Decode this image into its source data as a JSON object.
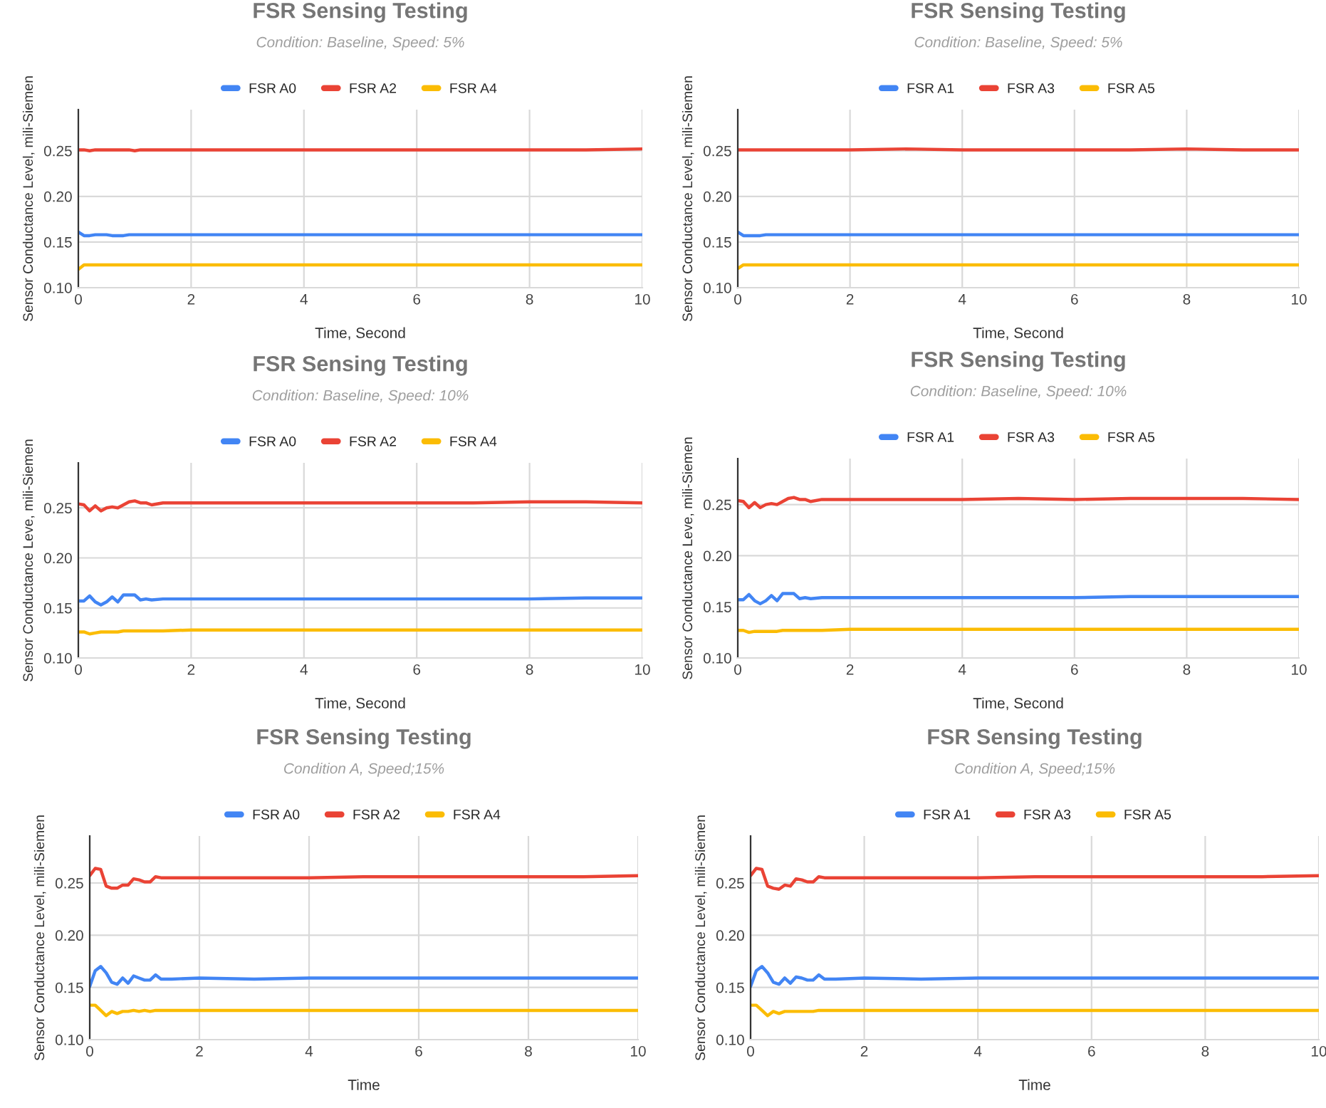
{
  "chart_data": [
    {
      "type": "line",
      "title": "FSR Sensing Testing",
      "subtitle": "Condition: Baseline, Speed: 5%",
      "xlabel": "Time, Second",
      "ylabel": "Sensor Conductance Level, mili-Siemen",
      "x": [
        0,
        0.1,
        0.2,
        0.3,
        0.4,
        0.5,
        0.6,
        0.7,
        0.8,
        0.9,
        1.0,
        1.1,
        1.2,
        1.3,
        1.5,
        2,
        3,
        4,
        5,
        6,
        7,
        8,
        9,
        10
      ],
      "series": [
        {
          "name": "FSR A0",
          "color": "#4285f4",
          "values": [
            0.161,
            0.157,
            0.157,
            0.158,
            0.158,
            0.158,
            0.157,
            0.157,
            0.157,
            0.158,
            0.158,
            0.158,
            0.158,
            0.158,
            0.158,
            0.158,
            0.158,
            0.158,
            0.158,
            0.158,
            0.158,
            0.158,
            0.158,
            0.158
          ]
        },
        {
          "name": "FSR A2",
          "color": "#ea4335",
          "values": [
            0.251,
            0.251,
            0.25,
            0.251,
            0.251,
            0.251,
            0.251,
            0.251,
            0.251,
            0.251,
            0.25,
            0.251,
            0.251,
            0.251,
            0.251,
            0.251,
            0.251,
            0.251,
            0.251,
            0.251,
            0.251,
            0.251,
            0.251,
            0.252
          ]
        },
        {
          "name": "FSR A4",
          "color": "#fbbc04",
          "values": [
            0.12,
            0.125,
            0.125,
            0.125,
            0.125,
            0.125,
            0.125,
            0.125,
            0.125,
            0.125,
            0.125,
            0.125,
            0.125,
            0.125,
            0.125,
            0.125,
            0.125,
            0.125,
            0.125,
            0.125,
            0.125,
            0.125,
            0.125,
            0.125
          ]
        }
      ],
      "xlim": [
        0,
        10
      ],
      "xticks": [
        0,
        2,
        4,
        6,
        8,
        10
      ],
      "ylim": [
        0.1,
        0.295
      ],
      "yticks": [
        {
          "value": 0.1,
          "label": "0.10"
        },
        {
          "value": 0.15,
          "label": "0.15"
        },
        {
          "value": 0.2,
          "label": "0.20"
        },
        {
          "value": 0.25,
          "label": "0.25"
        }
      ],
      "grid": true,
      "legend": "top",
      "marker": "none",
      "line_style": "solid"
    },
    {
      "type": "line",
      "title": "FSR Sensing Testing",
      "subtitle": "Condition: Baseline, Speed: 5%",
      "xlabel": "Time, Second",
      "ylabel": "Sensor Conductance Level, mili-Siemen",
      "x": [
        0,
        0.1,
        0.2,
        0.3,
        0.4,
        0.5,
        0.6,
        0.7,
        0.8,
        0.9,
        1.0,
        1.1,
        1.2,
        1.3,
        1.5,
        2,
        3,
        4,
        5,
        6,
        7,
        8,
        9,
        10
      ],
      "series": [
        {
          "name": "FSR A1",
          "color": "#4285f4",
          "values": [
            0.161,
            0.157,
            0.157,
            0.157,
            0.157,
            0.158,
            0.158,
            0.158,
            0.158,
            0.158,
            0.158,
            0.158,
            0.158,
            0.158,
            0.158,
            0.158,
            0.158,
            0.158,
            0.158,
            0.158,
            0.158,
            0.158,
            0.158,
            0.158
          ]
        },
        {
          "name": "FSR A3",
          "color": "#ea4335",
          "values": [
            0.251,
            0.251,
            0.251,
            0.251,
            0.251,
            0.251,
            0.251,
            0.251,
            0.251,
            0.251,
            0.251,
            0.251,
            0.251,
            0.251,
            0.251,
            0.251,
            0.252,
            0.251,
            0.251,
            0.251,
            0.251,
            0.252,
            0.251,
            0.251
          ]
        },
        {
          "name": "FSR A5",
          "color": "#fbbc04",
          "values": [
            0.121,
            0.125,
            0.125,
            0.125,
            0.125,
            0.125,
            0.125,
            0.125,
            0.125,
            0.125,
            0.125,
            0.125,
            0.125,
            0.125,
            0.125,
            0.125,
            0.125,
            0.125,
            0.125,
            0.125,
            0.125,
            0.125,
            0.125,
            0.125
          ]
        }
      ],
      "xlim": [
        0,
        10
      ],
      "xticks": [
        0,
        2,
        4,
        6,
        8,
        10
      ],
      "ylim": [
        0.1,
        0.295
      ],
      "yticks": [
        {
          "value": 0.1,
          "label": "0.10"
        },
        {
          "value": 0.15,
          "label": "0.15"
        },
        {
          "value": 0.2,
          "label": "0.20"
        },
        {
          "value": 0.25,
          "label": "0.25"
        }
      ],
      "grid": true,
      "legend": "top",
      "marker": "none",
      "line_style": "solid"
    },
    {
      "type": "line",
      "title": "FSR Sensing Testing",
      "subtitle": "Condition: Baseline, Speed: 10%",
      "xlabel": "Time, Second",
      "ylabel": "Sensor Conductance Leve, mili-Siemen",
      "x": [
        0,
        0.1,
        0.2,
        0.3,
        0.4,
        0.5,
        0.6,
        0.7,
        0.8,
        0.9,
        1.0,
        1.1,
        1.2,
        1.3,
        1.5,
        2,
        3,
        4,
        5,
        6,
        7,
        8,
        9,
        10
      ],
      "series": [
        {
          "name": "FSR A0",
          "color": "#4285f4",
          "values": [
            0.157,
            0.157,
            0.162,
            0.156,
            0.153,
            0.156,
            0.161,
            0.156,
            0.163,
            0.163,
            0.163,
            0.158,
            0.159,
            0.158,
            0.159,
            0.159,
            0.159,
            0.159,
            0.159,
            0.159,
            0.159,
            0.159,
            0.16,
            0.16
          ]
        },
        {
          "name": "FSR A2",
          "color": "#ea4335",
          "values": [
            0.254,
            0.253,
            0.247,
            0.252,
            0.247,
            0.25,
            0.251,
            0.25,
            0.253,
            0.256,
            0.257,
            0.255,
            0.255,
            0.253,
            0.255,
            0.255,
            0.255,
            0.255,
            0.255,
            0.255,
            0.255,
            0.256,
            0.256,
            0.255
          ]
        },
        {
          "name": "FSR A4",
          "color": "#fbbc04",
          "values": [
            0.126,
            0.126,
            0.124,
            0.125,
            0.126,
            0.126,
            0.126,
            0.126,
            0.127,
            0.127,
            0.127,
            0.127,
            0.127,
            0.127,
            0.127,
            0.128,
            0.128,
            0.128,
            0.128,
            0.128,
            0.128,
            0.128,
            0.128,
            0.128
          ]
        }
      ],
      "xlim": [
        0,
        10
      ],
      "xticks": [
        0,
        2,
        4,
        6,
        8,
        10
      ],
      "ylim": [
        0.1,
        0.295
      ],
      "yticks": [
        {
          "value": 0.1,
          "label": "0.10"
        },
        {
          "value": 0.15,
          "label": "0.15"
        },
        {
          "value": 0.2,
          "label": "0.20"
        },
        {
          "value": 0.25,
          "label": "0.25"
        }
      ],
      "grid": true,
      "legend": "top",
      "marker": "none",
      "line_style": "solid"
    },
    {
      "type": "line",
      "title": "FSR Sensing Testing",
      "subtitle": "Condition: Baseline, Speed: 10%",
      "xlabel": "Time, Second",
      "ylabel": "Sensor Conductance Leve, mili-Siemen",
      "x": [
        0,
        0.1,
        0.2,
        0.3,
        0.4,
        0.5,
        0.6,
        0.7,
        0.8,
        0.9,
        1.0,
        1.1,
        1.2,
        1.3,
        1.5,
        2,
        3,
        4,
        5,
        6,
        7,
        8,
        9,
        10
      ],
      "series": [
        {
          "name": "FSR A1",
          "color": "#4285f4",
          "values": [
            0.157,
            0.157,
            0.162,
            0.156,
            0.153,
            0.156,
            0.161,
            0.156,
            0.163,
            0.163,
            0.163,
            0.158,
            0.159,
            0.158,
            0.159,
            0.159,
            0.159,
            0.159,
            0.159,
            0.159,
            0.16,
            0.16,
            0.16,
            0.16
          ]
        },
        {
          "name": "FSR A3",
          "color": "#ea4335",
          "values": [
            0.254,
            0.253,
            0.247,
            0.252,
            0.247,
            0.25,
            0.251,
            0.25,
            0.253,
            0.256,
            0.257,
            0.255,
            0.255,
            0.253,
            0.255,
            0.255,
            0.255,
            0.255,
            0.256,
            0.255,
            0.256,
            0.256,
            0.256,
            0.255
          ]
        },
        {
          "name": "FSR A5",
          "color": "#fbbc04",
          "values": [
            0.127,
            0.127,
            0.125,
            0.126,
            0.126,
            0.126,
            0.126,
            0.126,
            0.127,
            0.127,
            0.127,
            0.127,
            0.127,
            0.127,
            0.127,
            0.128,
            0.128,
            0.128,
            0.128,
            0.128,
            0.128,
            0.128,
            0.128,
            0.128
          ]
        }
      ],
      "xlim": [
        0,
        10
      ],
      "xticks": [
        0,
        2,
        4,
        6,
        8,
        10
      ],
      "ylim": [
        0.1,
        0.295
      ],
      "yticks": [
        {
          "value": 0.1,
          "label": "0.10"
        },
        {
          "value": 0.15,
          "label": "0.15"
        },
        {
          "value": 0.2,
          "label": "0.20"
        },
        {
          "value": 0.25,
          "label": "0.25"
        }
      ],
      "grid": true,
      "legend": "top",
      "marker": "none",
      "line_style": "solid"
    },
    {
      "type": "line",
      "title": "FSR Sensing Testing",
      "subtitle": "Condition A, Speed;15%",
      "xlabel": "Time",
      "ylabel": "Sensor Conductance Level, mili-Siemen",
      "x": [
        0,
        0.1,
        0.2,
        0.3,
        0.4,
        0.5,
        0.6,
        0.7,
        0.8,
        0.9,
        1.0,
        1.1,
        1.2,
        1.3,
        1.5,
        2,
        3,
        4,
        5,
        6,
        7,
        8,
        9,
        10
      ],
      "series": [
        {
          "name": "FSR A0",
          "color": "#4285f4",
          "values": [
            0.151,
            0.166,
            0.17,
            0.164,
            0.155,
            0.153,
            0.159,
            0.154,
            0.161,
            0.159,
            0.157,
            0.157,
            0.162,
            0.158,
            0.158,
            0.159,
            0.158,
            0.159,
            0.159,
            0.159,
            0.159,
            0.159,
            0.159,
            0.159
          ]
        },
        {
          "name": "FSR A2",
          "color": "#ea4335",
          "values": [
            0.257,
            0.264,
            0.263,
            0.247,
            0.245,
            0.245,
            0.248,
            0.248,
            0.254,
            0.253,
            0.251,
            0.251,
            0.256,
            0.255,
            0.255,
            0.255,
            0.255,
            0.255,
            0.256,
            0.256,
            0.256,
            0.256,
            0.256,
            0.257
          ]
        },
        {
          "name": "FSR A4",
          "color": "#fbbc04",
          "values": [
            0.133,
            0.133,
            0.128,
            0.123,
            0.127,
            0.125,
            0.127,
            0.127,
            0.128,
            0.127,
            0.128,
            0.127,
            0.128,
            0.128,
            0.128,
            0.128,
            0.128,
            0.128,
            0.128,
            0.128,
            0.128,
            0.128,
            0.128,
            0.128
          ]
        }
      ],
      "xlim": [
        0,
        10
      ],
      "xticks": [
        0,
        2,
        4,
        6,
        8,
        10
      ],
      "ylim": [
        0.1,
        0.295
      ],
      "yticks": [
        {
          "value": 0.1,
          "label": "0.10"
        },
        {
          "value": 0.15,
          "label": "0.15"
        },
        {
          "value": 0.2,
          "label": "0.20"
        },
        {
          "value": 0.25,
          "label": "0.25"
        }
      ],
      "grid": true,
      "legend": "top",
      "marker": "none",
      "line_style": "solid"
    },
    {
      "type": "line",
      "title": "FSR Sensing Testing",
      "subtitle": "Condition A, Speed;15%",
      "xlabel": "Time",
      "ylabel": "Sensor Conductance Level, mili-Siemen",
      "x": [
        0,
        0.1,
        0.2,
        0.3,
        0.4,
        0.5,
        0.6,
        0.7,
        0.8,
        0.9,
        1.0,
        1.1,
        1.2,
        1.3,
        1.5,
        2,
        3,
        4,
        5,
        6,
        7,
        8,
        9,
        10
      ],
      "series": [
        {
          "name": "FSR A1",
          "color": "#4285f4",
          "values": [
            0.151,
            0.166,
            0.17,
            0.164,
            0.155,
            0.153,
            0.159,
            0.154,
            0.16,
            0.159,
            0.157,
            0.157,
            0.162,
            0.158,
            0.158,
            0.159,
            0.158,
            0.159,
            0.159,
            0.159,
            0.159,
            0.159,
            0.159,
            0.159
          ]
        },
        {
          "name": "FSR A3",
          "color": "#ea4335",
          "values": [
            0.257,
            0.264,
            0.263,
            0.247,
            0.245,
            0.244,
            0.248,
            0.247,
            0.254,
            0.253,
            0.251,
            0.251,
            0.256,
            0.255,
            0.255,
            0.255,
            0.255,
            0.255,
            0.256,
            0.256,
            0.256,
            0.256,
            0.256,
            0.257
          ]
        },
        {
          "name": "FSR A5",
          "color": "#fbbc04",
          "values": [
            0.133,
            0.133,
            0.128,
            0.123,
            0.127,
            0.125,
            0.127,
            0.127,
            0.127,
            0.127,
            0.127,
            0.127,
            0.128,
            0.128,
            0.128,
            0.128,
            0.128,
            0.128,
            0.128,
            0.128,
            0.128,
            0.128,
            0.128,
            0.128
          ]
        }
      ],
      "xlim": [
        0,
        10
      ],
      "xticks": [
        0,
        2,
        4,
        6,
        8,
        10
      ],
      "ylim": [
        0.1,
        0.295
      ],
      "yticks": [
        {
          "value": 0.1,
          "label": "0.10"
        },
        {
          "value": 0.15,
          "label": "0.15"
        },
        {
          "value": 0.2,
          "label": "0.20"
        },
        {
          "value": 0.25,
          "label": "0.25"
        }
      ],
      "grid": true,
      "legend": "top",
      "marker": "none",
      "line_style": "solid"
    }
  ]
}
